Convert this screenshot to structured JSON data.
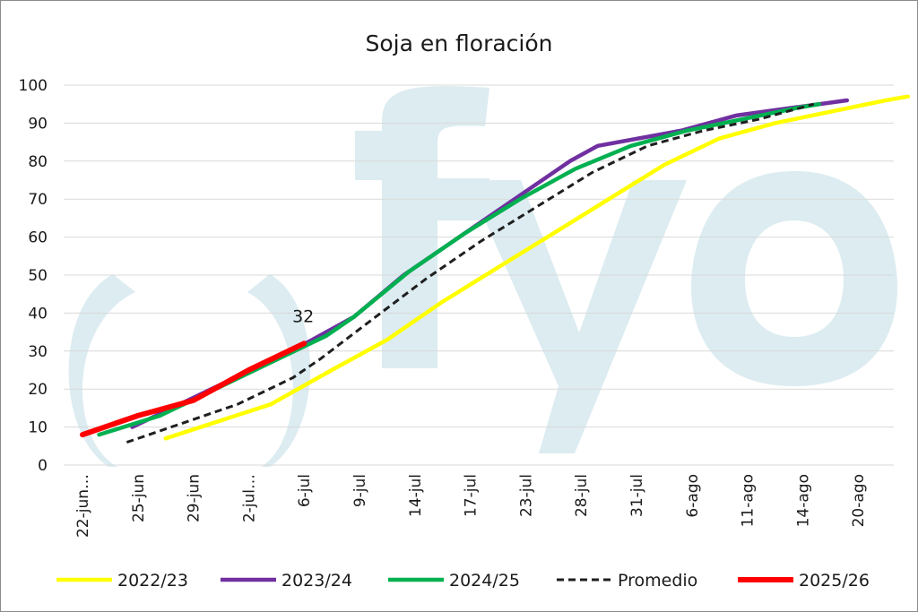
{
  "chart_data": {
    "type": "line",
    "title": "Soja en floración",
    "xlabel": "",
    "ylabel": "",
    "ylim": [
      0,
      100
    ],
    "yticks": [
      0,
      10,
      20,
      30,
      40,
      50,
      60,
      70,
      80,
      90,
      100
    ],
    "x_tick_labels": [
      "22-jun…",
      "25-jun",
      "29-jun",
      "2-jul…",
      "6-jul",
      "9-jul",
      "14-jul",
      "17-jul",
      "23-jul",
      "28-jul",
      "31-jul",
      "6-ago",
      "11-ago",
      "14-ago",
      "20-ago"
    ],
    "grid": true,
    "legend_position": "bottom",
    "watermark": "fyo",
    "series": [
      {
        "name": "2022/23",
        "color": "#ffff00",
        "style": "solid",
        "points": [
          [
            1.5,
            7
          ],
          [
            3.4,
            16
          ],
          [
            4.5,
            25
          ],
          [
            5.5,
            33
          ],
          [
            6.5,
            43
          ],
          [
            7.5,
            52
          ],
          [
            8.5,
            61
          ],
          [
            9.5,
            70
          ],
          [
            10.5,
            79
          ],
          [
            11.5,
            86
          ],
          [
            12.5,
            90
          ],
          [
            13.5,
            93
          ],
          [
            14.5,
            96
          ],
          [
            14.9,
            97
          ]
        ]
      },
      {
        "name": "2023/24",
        "color": "#7030a0",
        "style": "solid",
        "points": [
          [
            0.9,
            10
          ],
          [
            1.9,
            17
          ],
          [
            2.9,
            24
          ],
          [
            3.9,
            31
          ],
          [
            4.9,
            39
          ],
          [
            5.8,
            50
          ],
          [
            6.8,
            60
          ],
          [
            7.8,
            70
          ],
          [
            8.8,
            80
          ],
          [
            9.3,
            84
          ],
          [
            10.8,
            88
          ],
          [
            11.8,
            92
          ],
          [
            12.8,
            94
          ],
          [
            13.8,
            96
          ]
        ]
      },
      {
        "name": "2024/25",
        "color": "#00b050",
        "style": "solid",
        "points": [
          [
            0.3,
            8
          ],
          [
            1.4,
            13
          ],
          [
            2.4,
            20
          ],
          [
            3.4,
            27
          ],
          [
            4.4,
            34
          ],
          [
            4.9,
            39
          ],
          [
            5.9,
            51
          ],
          [
            6.9,
            61
          ],
          [
            7.9,
            70
          ],
          [
            8.9,
            78
          ],
          [
            9.9,
            84
          ],
          [
            10.9,
            88
          ],
          [
            11.9,
            91
          ],
          [
            12.9,
            94
          ],
          [
            13.3,
            95
          ]
        ]
      },
      {
        "name": "Promedio",
        "color": "#1f1f1f",
        "style": "dashed",
        "points": [
          [
            0.8,
            6
          ],
          [
            1.8,
            11
          ],
          [
            2.8,
            16
          ],
          [
            3.8,
            23
          ],
          [
            4.3,
            28
          ],
          [
            5.2,
            38
          ],
          [
            6.2,
            49
          ],
          [
            7.2,
            59
          ],
          [
            8.2,
            68
          ],
          [
            9.2,
            77
          ],
          [
            10.2,
            84
          ],
          [
            11.2,
            88
          ],
          [
            12.2,
            91
          ],
          [
            13.2,
            95
          ]
        ]
      },
      {
        "name": "2025/26",
        "color": "#ff0000",
        "style": "solid",
        "points": [
          [
            0,
            8
          ],
          [
            1.0,
            13
          ],
          [
            2.0,
            17
          ],
          [
            3.0,
            25
          ],
          [
            4.0,
            32
          ]
        ]
      }
    ],
    "annotations": [
      {
        "series": "2025/26",
        "x": 4.0,
        "y": 32,
        "text": "32"
      }
    ]
  }
}
